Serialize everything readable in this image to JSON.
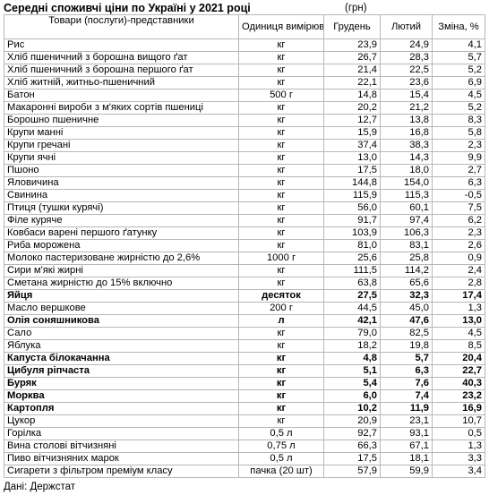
{
  "title": "Середні споживчі ціни по Україні у 2021 році",
  "unit_note": "(грн)",
  "headers": {
    "name": "Товари (послуги)-представники",
    "unit": "Одиниця вимірювання",
    "dec": "Грудень",
    "feb": "Лютий",
    "change": "Зміна, %"
  },
  "rows": [
    {
      "name": "Рис",
      "unit": "кг",
      "dec": "23,9",
      "feb": "24,9",
      "change": "4,1",
      "bold": false
    },
    {
      "name": "Хліб пшеничний з борошна вищого ґат",
      "unit": "кг",
      "dec": "26,7",
      "feb": "28,3",
      "change": "5,7",
      "bold": false
    },
    {
      "name": "Хліб пшеничний з борошна першого ґат",
      "unit": "кг",
      "dec": "21,4",
      "feb": "22,5",
      "change": "5,2",
      "bold": false
    },
    {
      "name": "Хліб житній, житньо-пшеничний",
      "unit": "кг",
      "dec": "22,1",
      "feb": "23,6",
      "change": "6,9",
      "bold": false
    },
    {
      "name": "Батон",
      "unit": "500 г",
      "dec": "14,8",
      "feb": "15,4",
      "change": "4,5",
      "bold": false
    },
    {
      "name": "Макаронні вироби з м'яких сортів пшениці",
      "unit": "кг",
      "dec": "20,2",
      "feb": "21,2",
      "change": "5,2",
      "bold": false
    },
    {
      "name": "Борошно пшеничне",
      "unit": "кг",
      "dec": "12,7",
      "feb": "13,8",
      "change": "8,3",
      "bold": false
    },
    {
      "name": "Крупи манні",
      "unit": "кг",
      "dec": "15,9",
      "feb": "16,8",
      "change": "5,8",
      "bold": false
    },
    {
      "name": "Крупи гречані",
      "unit": "кг",
      "dec": "37,4",
      "feb": "38,3",
      "change": "2,3",
      "bold": false
    },
    {
      "name": "Крупи ячні",
      "unit": "кг",
      "dec": "13,0",
      "feb": "14,3",
      "change": "9,9",
      "bold": false
    },
    {
      "name": "Пшоно",
      "unit": "кг",
      "dec": "17,5",
      "feb": "18,0",
      "change": "2,7",
      "bold": false
    },
    {
      "name": "Яловичина",
      "unit": "кг",
      "dec": "144,8",
      "feb": "154,0",
      "change": "6,3",
      "bold": false
    },
    {
      "name": "Свинина",
      "unit": "кг",
      "dec": "115,9",
      "feb": "115,3",
      "change": "-0,5",
      "bold": false
    },
    {
      "name": "Птиця (тушки курячі)",
      "unit": "кг",
      "dec": "56,0",
      "feb": "60,1",
      "change": "7,5",
      "bold": false
    },
    {
      "name": "Філе куряче",
      "unit": "кг",
      "dec": "91,7",
      "feb": "97,4",
      "change": "6,2",
      "bold": false
    },
    {
      "name": "Ковбаси варені першого ґатунку",
      "unit": "кг",
      "dec": "103,9",
      "feb": "106,3",
      "change": "2,3",
      "bold": false
    },
    {
      "name": "Риба морожена",
      "unit": "кг",
      "dec": "81,0",
      "feb": "83,1",
      "change": "2,6",
      "bold": false
    },
    {
      "name": "Молоко пастеризоване жирністю до 2,6%",
      "unit": "1000 г",
      "dec": "25,6",
      "feb": "25,8",
      "change": "0,9",
      "bold": false
    },
    {
      "name": "Сири м'які жирні",
      "unit": "кг",
      "dec": "111,5",
      "feb": "114,2",
      "change": "2,4",
      "bold": false
    },
    {
      "name": "Сметана жирністю до 15% включно",
      "unit": "кг",
      "dec": "63,8",
      "feb": "65,6",
      "change": "2,8",
      "bold": false
    },
    {
      "name": "Яйця",
      "unit": "десяток",
      "dec": "27,5",
      "feb": "32,3",
      "change": "17,4",
      "bold": true
    },
    {
      "name": "Масло вершкове",
      "unit": "200 г",
      "dec": "44,5",
      "feb": "45,0",
      "change": "1,3",
      "bold": false
    },
    {
      "name": "Олія соняшникова",
      "unit": "л",
      "dec": "42,1",
      "feb": "47,6",
      "change": "13,0",
      "bold": true
    },
    {
      "name": "Сало",
      "unit": "кг",
      "dec": "79,0",
      "feb": "82,5",
      "change": "4,5",
      "bold": false
    },
    {
      "name": "Яблука",
      "unit": "кг",
      "dec": "18,2",
      "feb": "19,8",
      "change": "8,5",
      "bold": false
    },
    {
      "name": "Капуста білокачанна",
      "unit": "кг",
      "dec": "4,8",
      "feb": "5,7",
      "change": "20,4",
      "bold": true
    },
    {
      "name": "Цибуля ріпчаста",
      "unit": "кг",
      "dec": "5,1",
      "feb": "6,3",
      "change": "22,7",
      "bold": true
    },
    {
      "name": "Буряк",
      "unit": "кг",
      "dec": "5,4",
      "feb": "7,6",
      "change": "40,3",
      "bold": true
    },
    {
      "name": "Морква",
      "unit": "кг",
      "dec": "6,0",
      "feb": "7,4",
      "change": "23,2",
      "bold": true
    },
    {
      "name": "Картопля",
      "unit": "кг",
      "dec": "10,2",
      "feb": "11,9",
      "change": "16,9",
      "bold": true
    },
    {
      "name": "Цукор",
      "unit": "кг",
      "dec": "20,9",
      "feb": "23,1",
      "change": "10,7",
      "bold": false
    },
    {
      "name": "Горілка",
      "unit": "0,5 л",
      "dec": "92,7",
      "feb": "93,1",
      "change": "0,5",
      "bold": false
    },
    {
      "name": "Вина столові вітчизняні",
      "unit": "0,75 л",
      "dec": "66,3",
      "feb": "67,1",
      "change": "1,3",
      "bold": false
    },
    {
      "name": "Пиво вітчизняних марок",
      "unit": "0,5 л",
      "dec": "17,5",
      "feb": "18,1",
      "change": "3,3",
      "bold": false
    },
    {
      "name": "Сигарети з фільтром преміум класу",
      "unit": "пачка (20 шт)",
      "dec": "57,9",
      "feb": "59,9",
      "change": "3,4",
      "bold": false
    }
  ],
  "source": "Дані: Держстат"
}
